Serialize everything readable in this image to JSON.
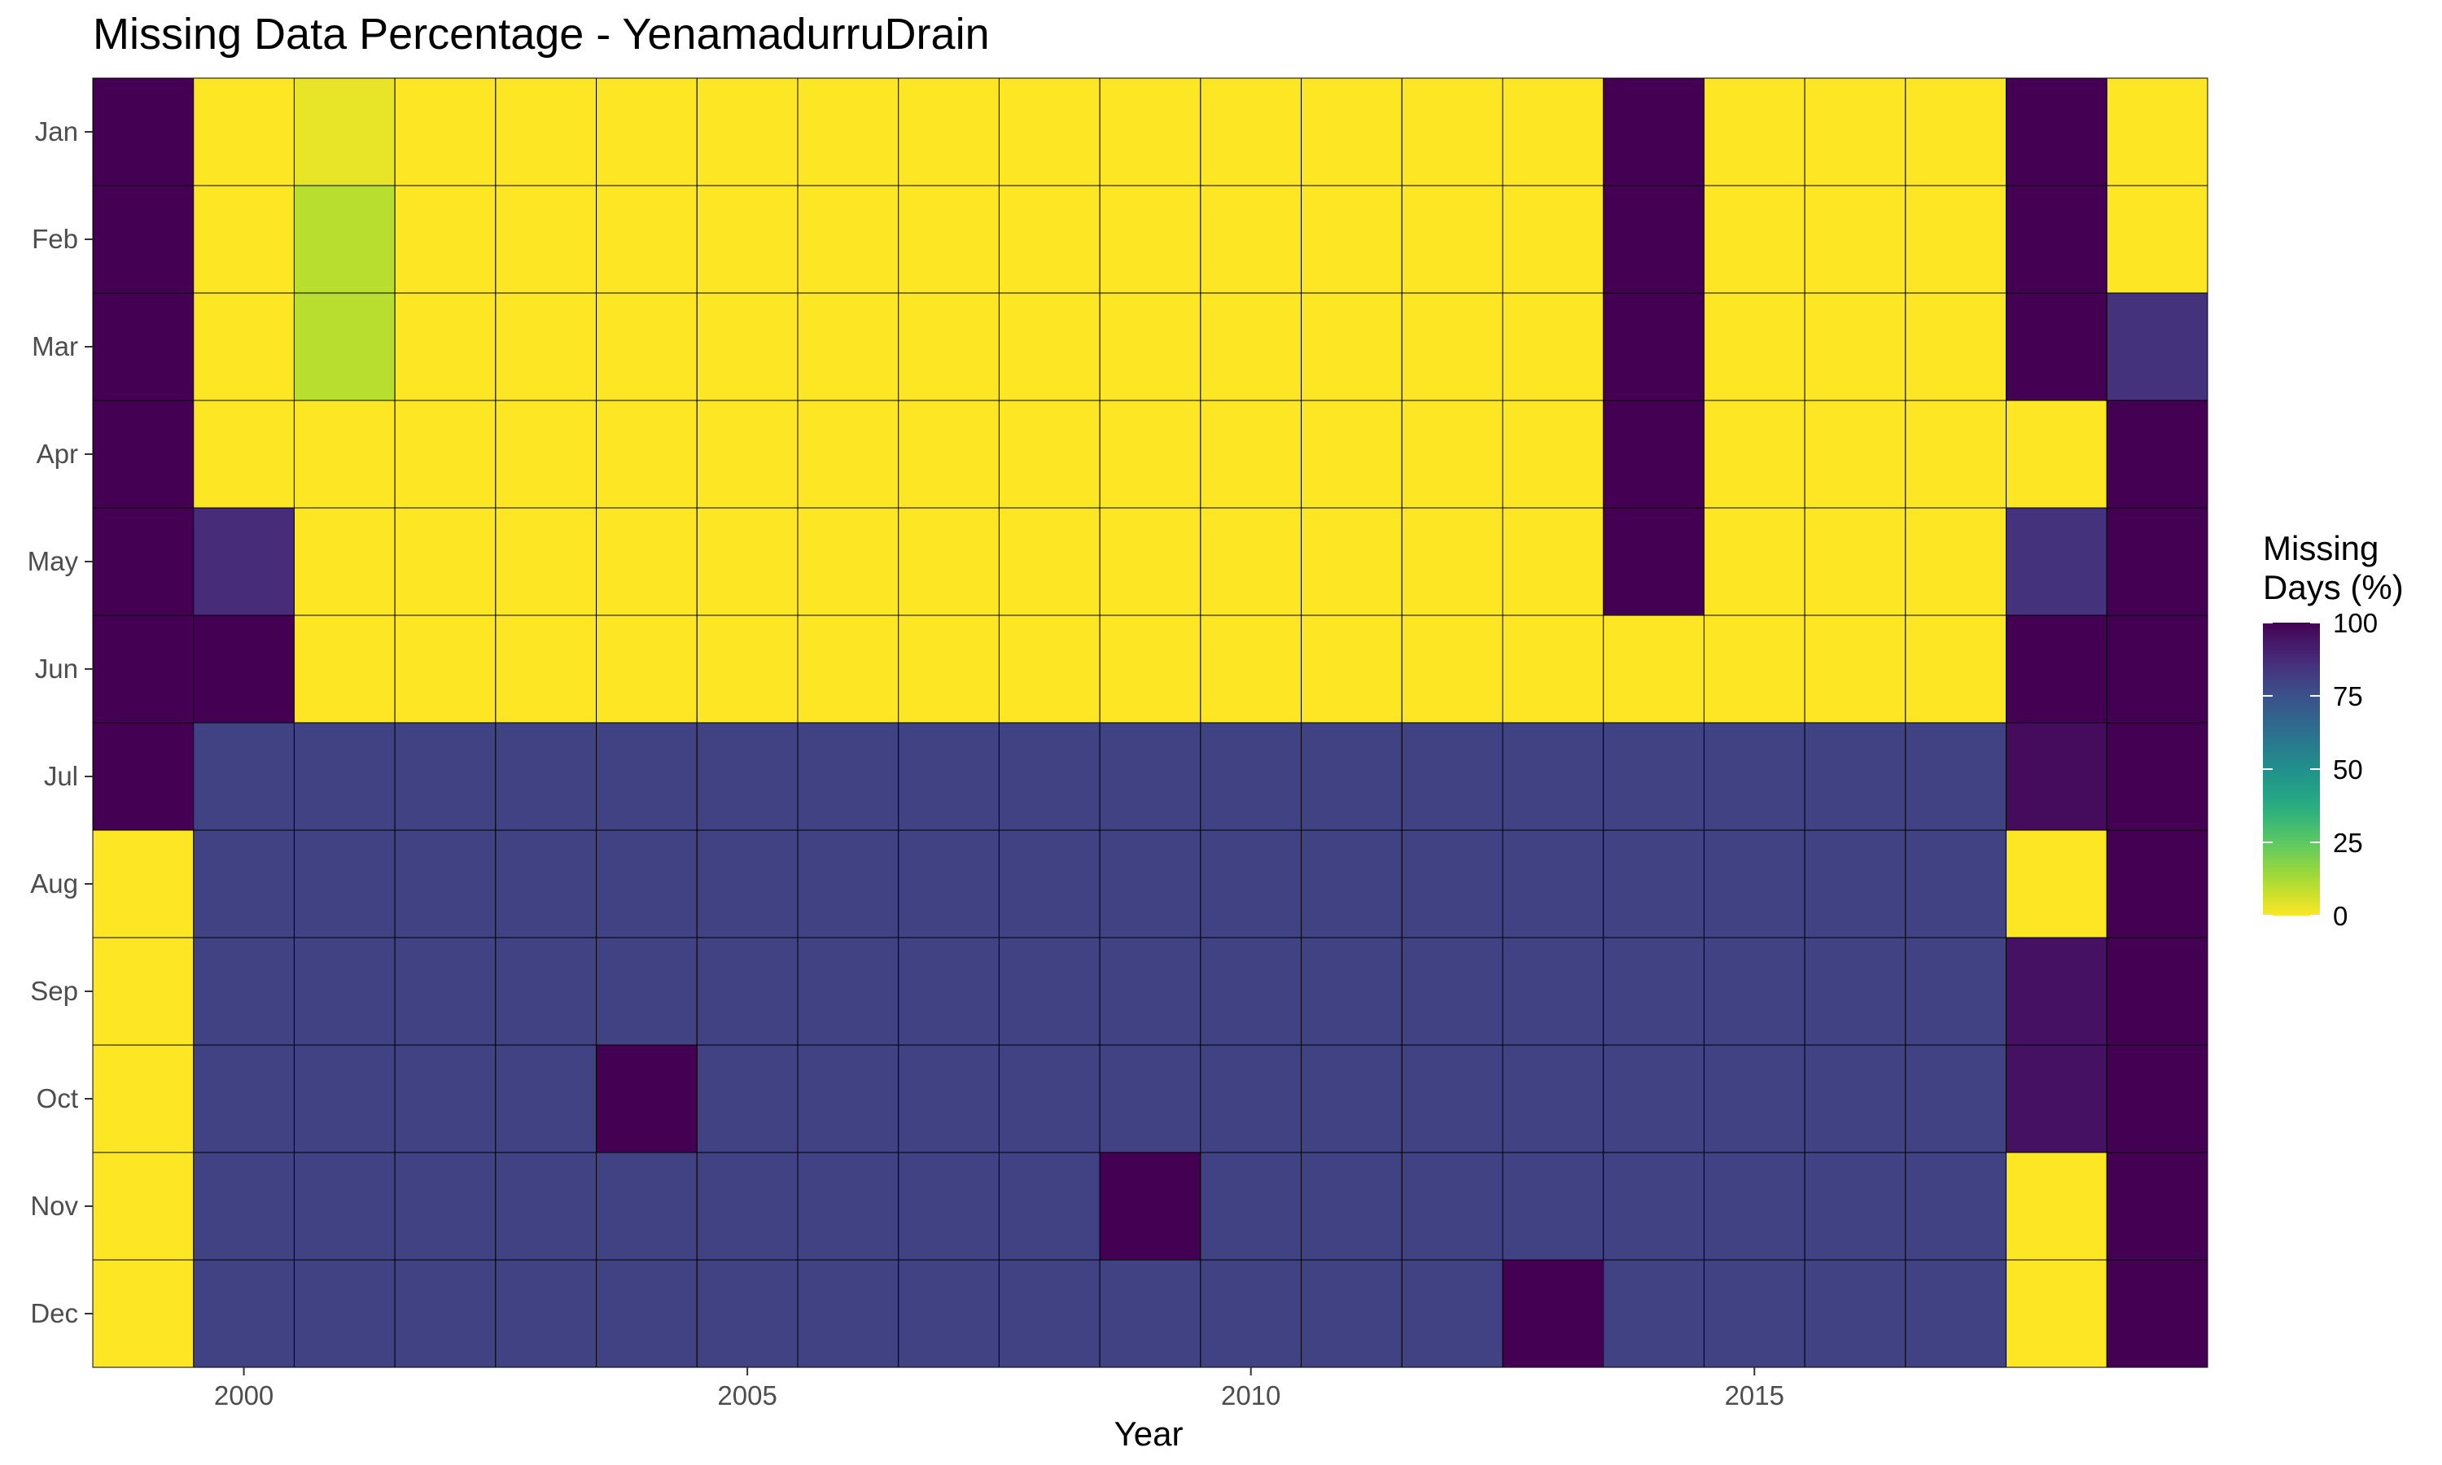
{
  "chart_data": {
    "type": "heatmap",
    "title": "Missing Data Percentage - YenamadurruDrain",
    "xlabel": "Year",
    "ylabel": "",
    "x": [
      1999,
      2000,
      2001,
      2002,
      2003,
      2004,
      2005,
      2006,
      2007,
      2008,
      2009,
      2010,
      2011,
      2012,
      2013,
      2014,
      2015,
      2016,
      2017,
      2018,
      2019
    ],
    "x_ticks": [
      "2000",
      "2005",
      "2010",
      "2015"
    ],
    "x_tick_values": [
      2000,
      2005,
      2010,
      2015
    ],
    "y": [
      "Jan",
      "Feb",
      "Mar",
      "Apr",
      "May",
      "Jun",
      "Jul",
      "Aug",
      "Sep",
      "Oct",
      "Nov",
      "Dec"
    ],
    "values": [
      [
        100,
        0,
        3,
        0,
        0,
        0,
        0,
        0,
        0,
        0,
        0,
        0,
        0,
        0,
        0,
        100,
        0,
        0,
        0,
        100,
        0
      ],
      [
        100,
        0,
        10,
        0,
        0,
        0,
        0,
        0,
        0,
        0,
        0,
        0,
        0,
        0,
        0,
        100,
        0,
        0,
        0,
        100,
        0
      ],
      [
        100,
        0,
        10,
        0,
        0,
        0,
        0,
        0,
        0,
        0,
        0,
        0,
        0,
        0,
        0,
        100,
        0,
        0,
        0,
        100,
        85
      ],
      [
        100,
        0,
        0,
        0,
        0,
        0,
        0,
        0,
        0,
        0,
        0,
        0,
        0,
        0,
        0,
        100,
        0,
        0,
        0,
        0,
        100
      ],
      [
        100,
        87,
        0,
        0,
        0,
        0,
        0,
        0,
        0,
        0,
        0,
        0,
        0,
        0,
        0,
        100,
        0,
        0,
        0,
        85,
        100
      ],
      [
        100,
        100,
        0,
        0,
        0,
        0,
        0,
        0,
        0,
        0,
        0,
        0,
        0,
        0,
        0,
        0,
        0,
        0,
        0,
        100,
        100
      ],
      [
        100,
        80,
        80,
        80,
        80,
        80,
        80,
        80,
        80,
        80,
        80,
        80,
        80,
        80,
        80,
        80,
        80,
        80,
        80,
        97,
        100
      ],
      [
        0,
        80,
        80,
        80,
        80,
        80,
        80,
        80,
        80,
        80,
        80,
        80,
        80,
        80,
        80,
        80,
        80,
        80,
        80,
        0,
        100
      ],
      [
        0,
        80,
        80,
        80,
        80,
        80,
        80,
        80,
        80,
        80,
        80,
        80,
        80,
        80,
        80,
        80,
        80,
        80,
        80,
        95,
        100
      ],
      [
        0,
        80,
        80,
        80,
        80,
        100,
        80,
        80,
        80,
        80,
        80,
        80,
        80,
        80,
        80,
        80,
        80,
        80,
        80,
        95,
        100
      ],
      [
        0,
        80,
        80,
        80,
        80,
        80,
        80,
        80,
        80,
        80,
        100,
        80,
        80,
        80,
        80,
        80,
        80,
        80,
        80,
        0,
        100
      ],
      [
        0,
        80,
        80,
        80,
        80,
        80,
        80,
        80,
        80,
        80,
        80,
        80,
        80,
        80,
        100,
        80,
        80,
        80,
        80,
        0,
        100
      ]
    ],
    "zlim": [
      0,
      100
    ],
    "colorscale": "viridis-reversed",
    "grid": false,
    "legend": {
      "title_lines": [
        "Missing",
        "Days (%)"
      ],
      "ticks": [
        "100",
        "75",
        "50",
        "25",
        "0"
      ],
      "tick_values": [
        100,
        75,
        50,
        25,
        0
      ],
      "placement": "right"
    }
  }
}
